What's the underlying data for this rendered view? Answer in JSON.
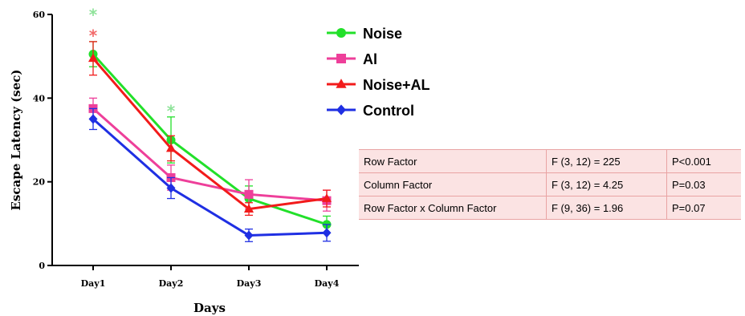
{
  "chart_data": {
    "type": "line",
    "xlabel": "Days",
    "ylabel": "Escape Latency (sec)",
    "categories": [
      "Day1",
      "Day2",
      "Day3",
      "Day4"
    ],
    "ylim": [
      0,
      60
    ],
    "yticks": [
      0,
      20,
      40,
      60
    ],
    "grid": false,
    "legend_position": "top-right",
    "series": [
      {
        "name": "Noise",
        "color": "#22e02a",
        "marker": "circle",
        "values": [
          50.5,
          30,
          16,
          9.8
        ],
        "errors": [
          3,
          5.5,
          3,
          2
        ]
      },
      {
        "name": "Al",
        "color": "#ee3f9a",
        "marker": "square",
        "values": [
          37.5,
          21,
          17,
          15.5
        ],
        "errors": [
          2.5,
          3,
          3.5,
          2.5
        ]
      },
      {
        "name": "Noise+AL",
        "color": "#f21b1b",
        "marker": "triangle",
        "values": [
          49.5,
          28,
          13.5,
          16
        ],
        "errors": [
          4,
          3,
          1.5,
          2
        ]
      },
      {
        "name": "Control",
        "color": "#1f2fe3",
        "marker": "diamond",
        "values": [
          35,
          18.5,
          7.2,
          7.8
        ],
        "errors": [
          2.5,
          2.5,
          1.5,
          2
        ]
      }
    ],
    "annotations": [
      {
        "text": "*",
        "category": "Day1",
        "y": 60.5,
        "color": "#8fe39a"
      },
      {
        "text": "*",
        "category": "Day1",
        "y": 55.5,
        "color": "#f26a6a"
      },
      {
        "text": "*",
        "category": "Day2",
        "y": 37.5,
        "color": "#8fe39a"
      }
    ]
  },
  "stats_table": {
    "rows": [
      {
        "factor": "Row Factor",
        "f_value": "F (3, 12) = 225",
        "p_value": "P<0.001"
      },
      {
        "factor": "Column Factor",
        "f_value": "F (3, 12) = 4.25",
        "p_value": "P=0.03"
      },
      {
        "factor": "Row Factor x Column Factor",
        "f_value": "F (9, 36) = 1.96",
        "p_value": "P=0.07"
      }
    ]
  }
}
